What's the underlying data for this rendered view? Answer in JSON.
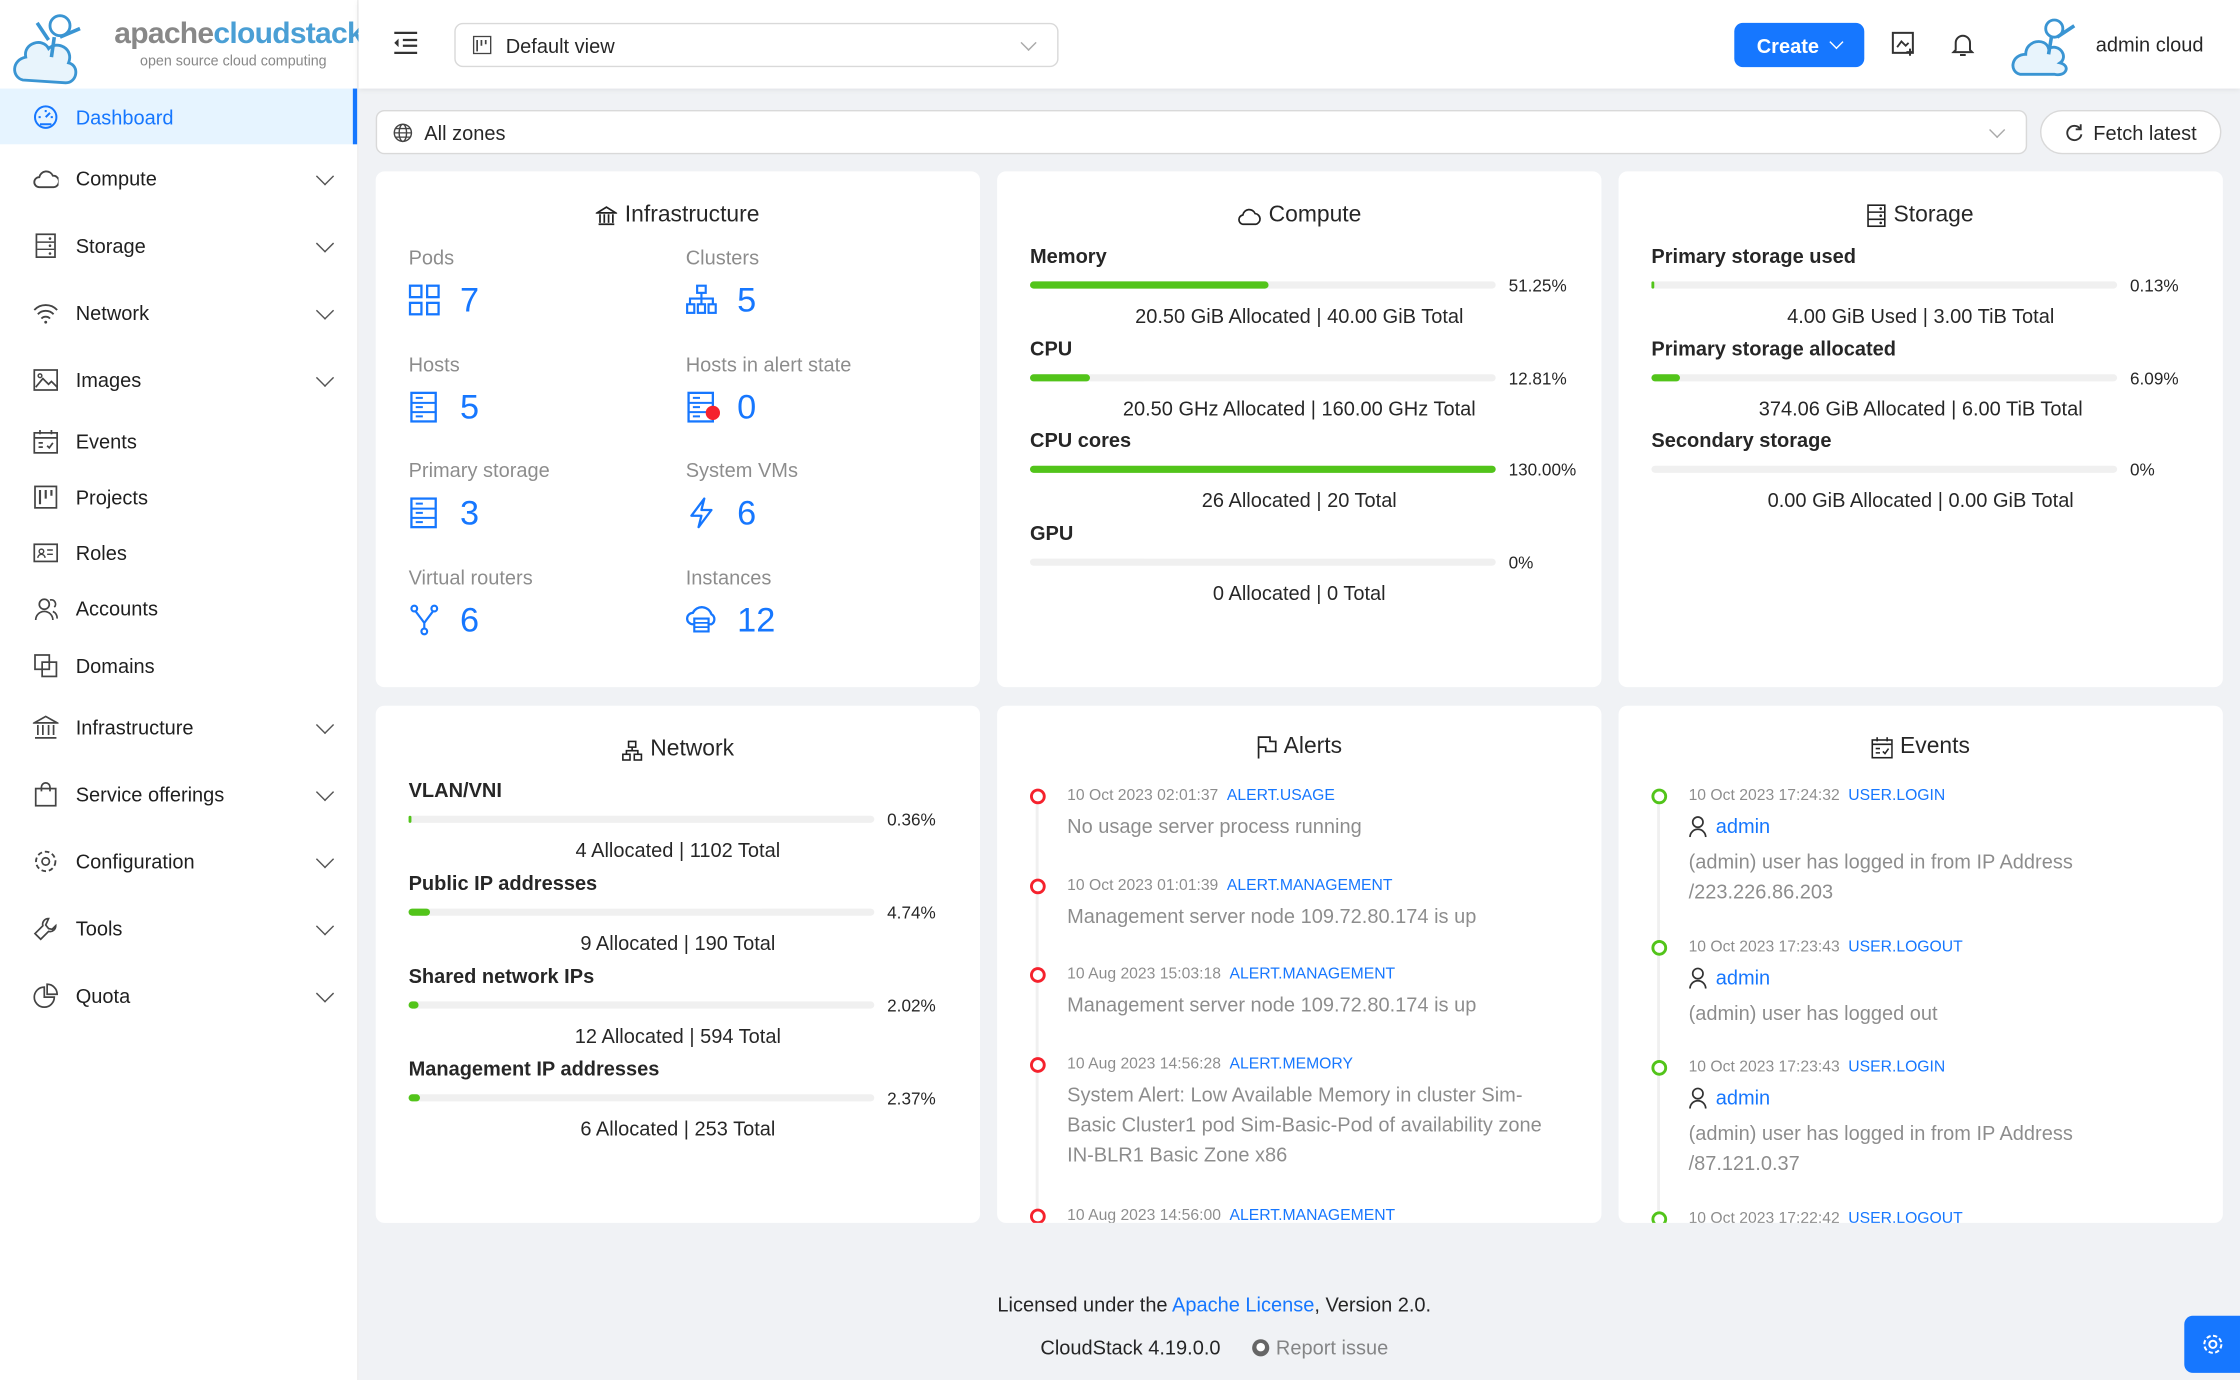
{
  "app": {
    "logo_text_a": "apache",
    "logo_text_b": "cloudstack",
    "logo_tagline": "open source cloud computing"
  },
  "sidebar": {
    "items": [
      {
        "label": "Dashboard",
        "icon": "dashboard-icon",
        "active": true,
        "expandable": false
      },
      {
        "label": "Compute",
        "icon": "cloud-icon",
        "expandable": true
      },
      {
        "label": "Storage",
        "icon": "database-icon",
        "expandable": true
      },
      {
        "label": "Network",
        "icon": "wifi-icon",
        "expandable": true
      },
      {
        "label": "Images",
        "icon": "picture-icon",
        "expandable": true
      },
      {
        "label": "Events",
        "icon": "schedule-icon",
        "expandable": false
      },
      {
        "label": "Projects",
        "icon": "project-icon",
        "expandable": false
      },
      {
        "label": "Roles",
        "icon": "idcard-icon",
        "expandable": false
      },
      {
        "label": "Accounts",
        "icon": "team-icon",
        "expandable": false
      },
      {
        "label": "Domains",
        "icon": "block-icon",
        "expandable": false
      },
      {
        "label": "Infrastructure",
        "icon": "bank-icon",
        "expandable": true
      },
      {
        "label": "Service offerings",
        "icon": "shopping-icon",
        "expandable": true
      },
      {
        "label": "Configuration",
        "icon": "setting-icon",
        "expandable": true
      },
      {
        "label": "Tools",
        "icon": "tool-icon",
        "expandable": true
      },
      {
        "label": "Quota",
        "icon": "pie-chart-icon",
        "expandable": true
      }
    ]
  },
  "header": {
    "view_select": "Default view",
    "create_label": "Create",
    "user_name": "admin cloud"
  },
  "toolbar": {
    "zone_select": "All zones",
    "fetch_label": "Fetch latest"
  },
  "infrastructure": {
    "title": "Infrastructure",
    "items": [
      {
        "label": "Pods",
        "value": "7"
      },
      {
        "label": "Clusters",
        "value": "5"
      },
      {
        "label": "Hosts",
        "value": "5"
      },
      {
        "label": "Hosts in alert state",
        "value": "0"
      },
      {
        "label": "Primary storage",
        "value": "3"
      },
      {
        "label": "System VMs",
        "value": "6"
      },
      {
        "label": "Virtual routers",
        "value": "6"
      },
      {
        "label": "Instances",
        "value": "12"
      }
    ]
  },
  "compute": {
    "title": "Compute",
    "items": [
      {
        "label": "Memory",
        "percent": 51.25,
        "pct_text": "51.25%",
        "detail": "20.50 GiB Allocated | 40.00 GiB Total"
      },
      {
        "label": "CPU",
        "percent": 12.81,
        "pct_text": "12.81%",
        "detail": "20.50 GHz Allocated | 160.00 GHz Total"
      },
      {
        "label": "CPU cores",
        "percent": 100,
        "pct_text": "130.00%",
        "detail": "26 Allocated | 20 Total"
      },
      {
        "label": "GPU",
        "percent": 0,
        "pct_text": "0%",
        "detail": "0 Allocated | 0 Total"
      }
    ]
  },
  "storage": {
    "title": "Storage",
    "items": [
      {
        "label": "Primary storage used",
        "percent": 0.13,
        "pct_text": "0.13%",
        "detail": "4.00 GiB Used | 3.00 TiB Total"
      },
      {
        "label": "Primary storage allocated",
        "percent": 6.09,
        "pct_text": "6.09%",
        "detail": "374.06 GiB Allocated | 6.00 TiB Total"
      },
      {
        "label": "Secondary storage",
        "percent": 0,
        "pct_text": "0%",
        "detail": "0.00 GiB Allocated | 0.00 GiB Total"
      }
    ]
  },
  "network": {
    "title": "Network",
    "items": [
      {
        "label": "VLAN/VNI",
        "percent": 0.36,
        "pct_text": "0.36%",
        "detail": "4 Allocated | 1102 Total"
      },
      {
        "label": "Public IP addresses",
        "percent": 4.74,
        "pct_text": "4.74%",
        "detail": "9 Allocated | 190 Total"
      },
      {
        "label": "Shared network IPs",
        "percent": 2.02,
        "pct_text": "2.02%",
        "detail": "12 Allocated | 594 Total"
      },
      {
        "label": "Management IP addresses",
        "percent": 2.37,
        "pct_text": "2.37%",
        "detail": "6 Allocated | 253 Total"
      }
    ]
  },
  "alerts": {
    "title": "Alerts",
    "items": [
      {
        "time": "10 Oct 2023 02:01:37",
        "type": "ALERT.USAGE",
        "desc": "No usage server process running"
      },
      {
        "time": "10 Oct 2023 01:01:39",
        "type": "ALERT.MANAGEMENT",
        "desc": "Management server node 109.72.80.174 is up"
      },
      {
        "time": "10 Aug 2023 15:03:18",
        "type": "ALERT.MANAGEMENT",
        "desc": "Management server node 109.72.80.174 is up"
      },
      {
        "time": "10 Aug 2023 14:56:28",
        "type": "ALERT.MEMORY",
        "desc": "System Alert: Low Available Memory in cluster Sim-Basic Cluster1 pod Sim-Basic-Pod of availability zone IN-BLR1 Basic Zone x86"
      },
      {
        "time": "10 Aug 2023 14:56:00",
        "type": "ALERT.MANAGEMENT",
        "desc": ""
      }
    ]
  },
  "events": {
    "title": "Events",
    "items": [
      {
        "time": "10 Oct 2023 17:24:32",
        "type": "USER.LOGIN",
        "user": "admin",
        "desc": "(admin) user has logged in from IP Address /223.226.86.203"
      },
      {
        "time": "10 Oct 2023 17:23:43",
        "type": "USER.LOGOUT",
        "user": "admin",
        "desc": "(admin) user has logged out"
      },
      {
        "time": "10 Oct 2023 17:23:43",
        "type": "USER.LOGIN",
        "user": "admin",
        "desc": "(admin) user has logged in from IP Address /87.121.0.37"
      },
      {
        "time": "10 Oct 2023 17:22:42",
        "type": "USER.LOGOUT",
        "user": "",
        "desc": ""
      }
    ]
  },
  "footer": {
    "license_pre": "Licensed under the ",
    "license_link": "Apache License",
    "license_post": ", Version 2.0.",
    "version": "CloudStack 4.19.0.0",
    "report": "Report issue"
  },
  "colors": {
    "primary": "#1677ff",
    "success": "#52c41a",
    "error": "#f5222d",
    "background": "#f0f2f5"
  }
}
